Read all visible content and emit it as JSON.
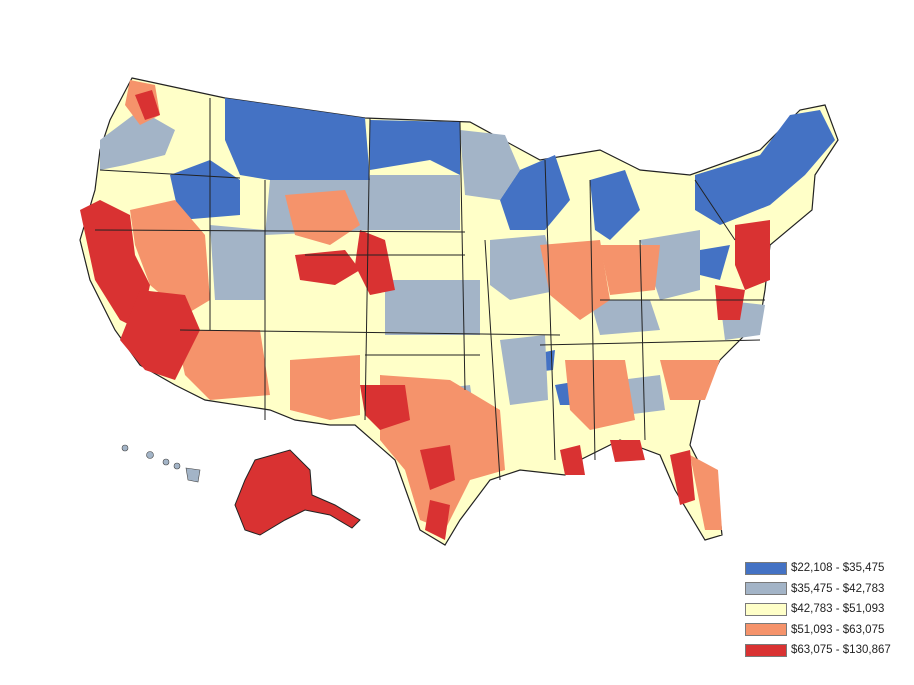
{
  "legend": {
    "items": [
      {
        "label": "$22,108 - $35,475",
        "color": "#4472c4"
      },
      {
        "label": "$35,475 - $42,783",
        "color": "#a3b4c7"
      },
      {
        "label": "$42,783 - $51,093",
        "color": "#ffffc8"
      },
      {
        "label": "$51,093 - $63,075",
        "color": "#f5936b"
      },
      {
        "label": "$63,075 - $130,867",
        "color": "#d93232"
      }
    ]
  }
}
